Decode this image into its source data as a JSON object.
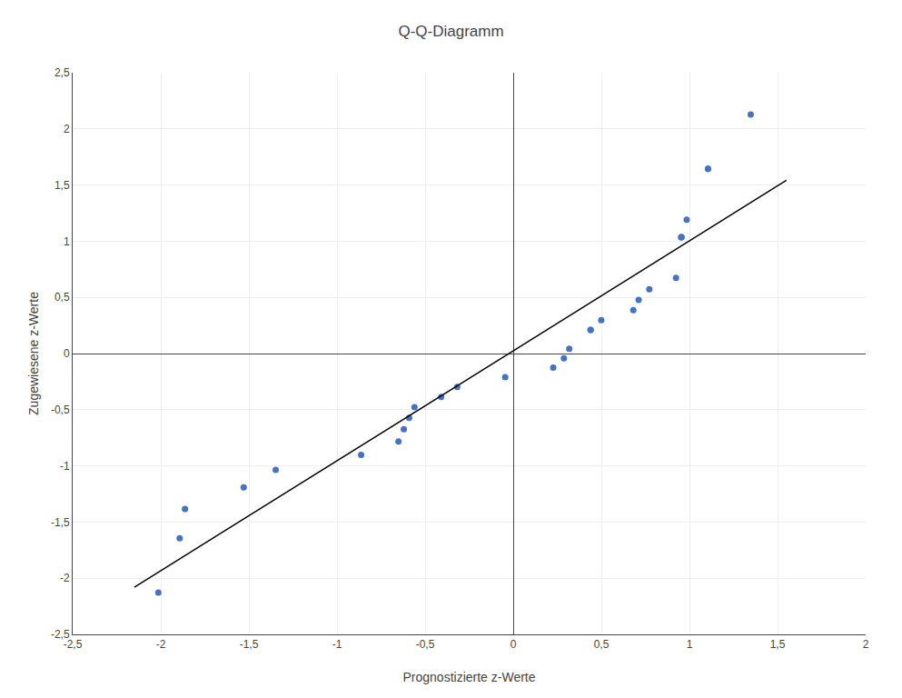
{
  "chart_data": {
    "type": "scatter",
    "title": "Q-Q-Diagramm",
    "xlabel": "Prognostizierte z-Werte",
    "ylabel": "Zugewiesene z-Werte",
    "series": [
      {
        "type": "scatter",
        "color": "#4472C4",
        "x": [
          -2.013924314,
          -1.89278601,
          -1.862501433,
          -1.529371096,
          -1.347663639,
          -0.86311042,
          -0.651118387,
          -0.620833811,
          -0.590549235,
          -0.560264659,
          -0.408841778,
          -0.31798805,
          -0.045426864,
          0.227134321,
          0.287703473,
          0.31798805,
          0.439126354,
          0.439126354,
          0.499695507,
          0.681402963,
          0.71168754,
          0.772256692,
          0.923679573,
          0.953964149,
          0.953964149,
          0.953964149,
          0.984248725,
          1.10538703,
          1.10538703,
          1.347663639
        ],
        "values": [
          -2.12804523,
          -1.64485363,
          -1.38299413,
          -1.19181617,
          -1.03643339,
          -0.90273479,
          -0.78350038,
          -0.67448975,
          -0.57296755,
          -0.47704043,
          -0.38532047,
          -0.29673784,
          -0.21042839,
          -0.12566135,
          -0.0417893,
          0.041789298,
          0.210428394,
          0.210428394,
          0.296737838,
          0.385320466,
          0.477040428,
          0.572967548,
          0.67448975,
          1.036433389,
          1.036433389,
          1.036433389,
          1.191816172,
          1.644853627,
          1.644853627,
          2.128045234
        ]
      },
      {
        "type": "line",
        "color": "#000000",
        "x": [
          -2.15,
          1.55
        ],
        "values": [
          -2.08007,
          1.54165
        ]
      }
    ],
    "xlim": [
      -2.5,
      2.0
    ],
    "ylim": [
      -2.5,
      2.5
    ],
    "xticks": [
      {
        "value": -2.5,
        "label": "-2,5"
      },
      -2,
      {
        "value": -1.5,
        "label": "-1,5"
      },
      -1,
      {
        "value": -0.5,
        "label": "-0,5"
      },
      0,
      {
        "value": 0.5,
        "label": "0,5"
      },
      1,
      {
        "value": 1.5,
        "label": "1,5"
      },
      2
    ],
    "yticks": [
      {
        "value": -2.5,
        "label": "-2,5"
      },
      -2,
      {
        "value": -1.5,
        "label": "-1,5"
      },
      -1,
      {
        "value": -0.5,
        "label": "-0,5"
      },
      0,
      {
        "value": 0.5,
        "label": "0,5"
      },
      1,
      {
        "value": 1.5,
        "label": "1,5"
      },
      2,
      {
        "value": 2.5,
        "label": "2,5"
      }
    ],
    "grid": true
  }
}
